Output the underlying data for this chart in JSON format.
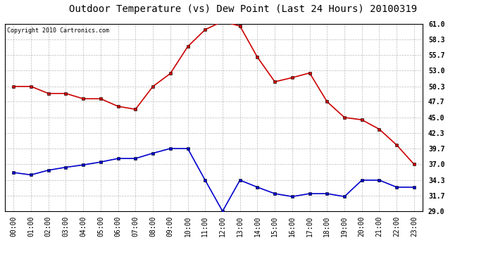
{
  "title": "Outdoor Temperature (vs) Dew Point (Last 24 Hours) 20100319",
  "copyright": "Copyright 2010 Cartronics.com",
  "x_labels": [
    "00:00",
    "01:00",
    "02:00",
    "03:00",
    "04:00",
    "05:00",
    "06:00",
    "07:00",
    "08:00",
    "09:00",
    "10:00",
    "11:00",
    "12:00",
    "13:00",
    "14:00",
    "15:00",
    "16:00",
    "17:00",
    "18:00",
    "19:00",
    "20:00",
    "21:00",
    "22:00",
    "23:00"
  ],
  "temp_data": [
    50.3,
    50.3,
    49.1,
    49.1,
    48.2,
    48.2,
    46.9,
    46.4,
    50.3,
    52.5,
    57.1,
    60.0,
    61.4,
    60.6,
    55.3,
    51.1,
    51.8,
    52.6,
    47.7,
    45.0,
    44.6,
    43.0,
    40.3,
    37.0
  ],
  "dew_data": [
    35.6,
    35.2,
    36.0,
    36.5,
    36.9,
    37.4,
    38.0,
    38.0,
    38.9,
    39.7,
    39.7,
    34.3,
    29.0,
    34.3,
    33.1,
    32.0,
    31.5,
    32.0,
    32.0,
    31.5,
    34.3,
    34.3,
    33.1,
    33.1
  ],
  "temp_color": "#cc0000",
  "dew_color": "#0000cc",
  "bg_color": "#ffffff",
  "plot_bg_color": "#ffffff",
  "grid_color": "#bbbbbb",
  "ylim": [
    29.0,
    61.0
  ],
  "yticks": [
    29.0,
    31.7,
    34.3,
    37.0,
    39.7,
    42.3,
    45.0,
    47.7,
    50.3,
    53.0,
    55.7,
    58.3,
    61.0
  ],
  "title_fontsize": 10,
  "copyright_fontsize": 6,
  "tick_fontsize": 7,
  "marker": "s",
  "markersize": 2.5,
  "linewidth": 1.2
}
